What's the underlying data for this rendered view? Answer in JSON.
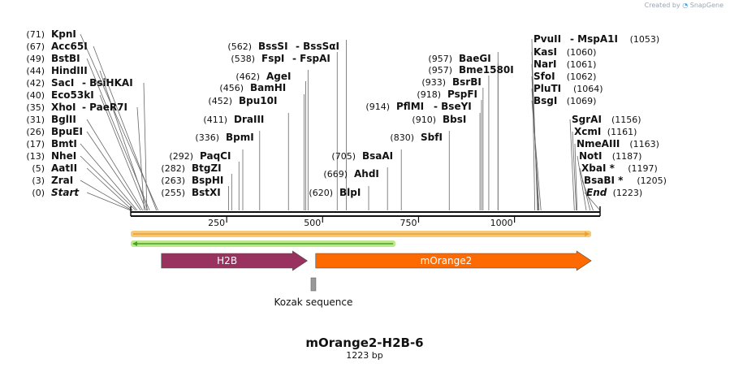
{
  "attribution": {
    "prefix": "Created by",
    "brand": "SnapGene"
  },
  "title": "mOrange2-H2B-6",
  "length_label": "1223 bp",
  "sequence_length": 1223,
  "scale_ticks": [
    {
      "pos": 250,
      "label": "250"
    },
    {
      "pos": 500,
      "label": "500"
    },
    {
      "pos": 750,
      "label": "750"
    },
    {
      "pos": 1000,
      "label": "1000"
    }
  ],
  "sites_left": [
    {
      "num": "(0)",
      "name": "Start",
      "pos": 0,
      "italic": true
    },
    {
      "num": "(3)",
      "name": "ZraI",
      "pos": 3
    },
    {
      "num": "(5)",
      "name": "AatII",
      "pos": 5
    },
    {
      "num": "(13)",
      "name": "NheI",
      "pos": 13
    },
    {
      "num": "(17)",
      "name": "BmtI",
      "pos": 17
    },
    {
      "num": "(26)",
      "name": "BpuEI",
      "pos": 26
    },
    {
      "num": "(31)",
      "name": "BglII",
      "pos": 31
    },
    {
      "num": "(35)",
      "name": "XhoI",
      "name2": "PaeR7I",
      "pos": 35
    },
    {
      "num": "(40)",
      "name": "Eco53kI",
      "pos": 40
    },
    {
      "num": "(42)",
      "name": "SacI",
      "name2": "BsiHKAI",
      "pos": 42
    },
    {
      "num": "(44)",
      "name": "HindIII",
      "pos": 44
    },
    {
      "num": "(49)",
      "name": "BstBI",
      "pos": 49
    },
    {
      "num": "(67)",
      "name": "Acc65I",
      "pos": 67
    },
    {
      "num": "(71)",
      "name": "KpnI",
      "pos": 71
    }
  ],
  "sites_mid": [
    {
      "num": "(255)",
      "name": "BstXI",
      "pos": 255
    },
    {
      "num": "(263)",
      "name": "BspHI",
      "pos": 263
    },
    {
      "num": "(282)",
      "name": "BtgZI",
      "pos": 282
    },
    {
      "num": "(292)",
      "name": "PaqCI",
      "pos": 292
    },
    {
      "num": "(336)",
      "name": "BpmI",
      "pos": 336
    },
    {
      "num": "(411)",
      "name": "DraIII",
      "pos": 411
    },
    {
      "num": "(452)",
      "name": "Bpu10I",
      "pos": 452
    },
    {
      "num": "(456)",
      "name": "BamHI",
      "pos": 456
    },
    {
      "num": "(462)",
      "name": "AgeI",
      "pos": 462
    },
    {
      "num": "(538)",
      "name": "FspI",
      "name2": "FspAI",
      "pos": 538
    },
    {
      "num": "(562)",
      "name": "BssSI",
      "name2": "BssSαI",
      "pos": 562
    },
    {
      "num": "(620)",
      "name": "BlpI",
      "pos": 620
    },
    {
      "num": "(669)",
      "name": "AhdI",
      "pos": 669
    },
    {
      "num": "(705)",
      "name": "BsaAI",
      "pos": 705
    }
  ],
  "sites_right_mid": [
    {
      "num": "(830)",
      "name": "SbfI",
      "pos": 830
    },
    {
      "num": "(910)",
      "name": "BbsI",
      "pos": 910
    },
    {
      "num": "(914)",
      "name": "PflMI",
      "name2": "BseYI",
      "pos": 914
    },
    {
      "num": "(918)",
      "name": "PspFI",
      "pos": 918
    },
    {
      "num": "(933)",
      "name": "BsrBI",
      "pos": 933
    },
    {
      "num": "(957)",
      "name": "Bme1580I",
      "pos": 957
    },
    {
      "num": "(957)",
      "name": "BaeGI",
      "pos": 957
    }
  ],
  "sites_right": [
    {
      "num": "(1053)",
      "name": "PvuII",
      "name2": "MspA1I",
      "pos": 1053
    },
    {
      "num": "(1060)",
      "name": "KasI",
      "pos": 1060
    },
    {
      "num": "(1061)",
      "name": "NarI",
      "pos": 1061
    },
    {
      "num": "(1062)",
      "name": "SfoI",
      "pos": 1062
    },
    {
      "num": "(1064)",
      "name": "PluTI",
      "pos": 1064
    },
    {
      "num": "(1069)",
      "name": "BsgI",
      "pos": 1069
    },
    {
      "num": "(1156)",
      "name": "SgrAI",
      "pos": 1156
    },
    {
      "num": "(1161)",
      "name": "XcmI",
      "pos": 1161
    },
    {
      "num": "(1163)",
      "name": "NmeAIII",
      "pos": 1163
    },
    {
      "num": "(1187)",
      "name": "NotI",
      "pos": 1187
    },
    {
      "num": "(1197)",
      "name": "XbaI *",
      "pos": 1197
    },
    {
      "num": "(1205)",
      "name": "BsaBI *",
      "pos": 1205
    },
    {
      "num": "(1223)",
      "name": "End",
      "pos": 1223,
      "italic": true
    }
  ],
  "features": [
    {
      "name": "H2B",
      "start": 80,
      "end": 460,
      "color": "#99325f",
      "direction": "forward"
    },
    {
      "name": "mOrange2",
      "start": 482,
      "end": 1200,
      "color": "#ff6a00",
      "direction": "forward"
    }
  ],
  "orf_bars": [
    {
      "start": 0,
      "end": 1200,
      "color": "#f5c87a",
      "inner": "#e8a030",
      "direction": "forward"
    },
    {
      "start": 0,
      "end": 690,
      "color": "#bde98a",
      "inner": "#4aa02c",
      "direction": "reverse"
    }
  ],
  "kozak": {
    "label": "Kozak sequence",
    "pos": 476
  },
  "colors": {
    "backbone": "#111111",
    "kozak": "#999999"
  }
}
